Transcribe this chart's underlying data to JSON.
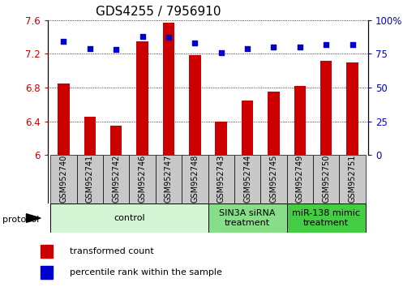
{
  "title": "GDS4255 / 7956910",
  "samples": [
    "GSM952740",
    "GSM952741",
    "GSM952742",
    "GSM952746",
    "GSM952747",
    "GSM952748",
    "GSM952743",
    "GSM952744",
    "GSM952745",
    "GSM952749",
    "GSM952750",
    "GSM952751"
  ],
  "transformed_count": [
    6.85,
    6.45,
    6.35,
    7.35,
    7.57,
    7.18,
    6.4,
    6.65,
    6.75,
    6.82,
    7.12,
    7.1
  ],
  "percentile_rank": [
    84,
    79,
    78,
    88,
    87,
    83,
    76,
    79,
    80,
    80,
    82,
    82
  ],
  "ylim_left": [
    6.0,
    7.6
  ],
  "ylim_right": [
    0,
    100
  ],
  "yticks_left": [
    6.0,
    6.4,
    6.8,
    7.2,
    7.6
  ],
  "yticks_right": [
    0,
    25,
    50,
    75,
    100
  ],
  "bar_color": "#cc0000",
  "dot_color": "#0000cc",
  "xlabel_color": "#cc0000",
  "ylabel_right_color": "#0000cc",
  "groups": [
    {
      "label": "control",
      "start": 0,
      "end": 6,
      "color": "#d4f5d4"
    },
    {
      "label": "SIN3A siRNA\ntreatment",
      "start": 6,
      "end": 9,
      "color": "#88dd88"
    },
    {
      "label": "miR-138 mimic\ntreatment",
      "start": 9,
      "end": 12,
      "color": "#44cc44"
    }
  ],
  "protocol_label": "protocol",
  "legend_items": [
    {
      "label": "transformed count",
      "color": "#cc0000"
    },
    {
      "label": "percentile rank within the sample",
      "color": "#0000cc"
    }
  ],
  "bg_color": "#ffffff",
  "sample_box_color": "#c8c8c8",
  "title_fontsize": 11,
  "tick_fontsize": 8.5,
  "sample_fontsize": 7,
  "group_fontsize": 8,
  "legend_fontsize": 8
}
